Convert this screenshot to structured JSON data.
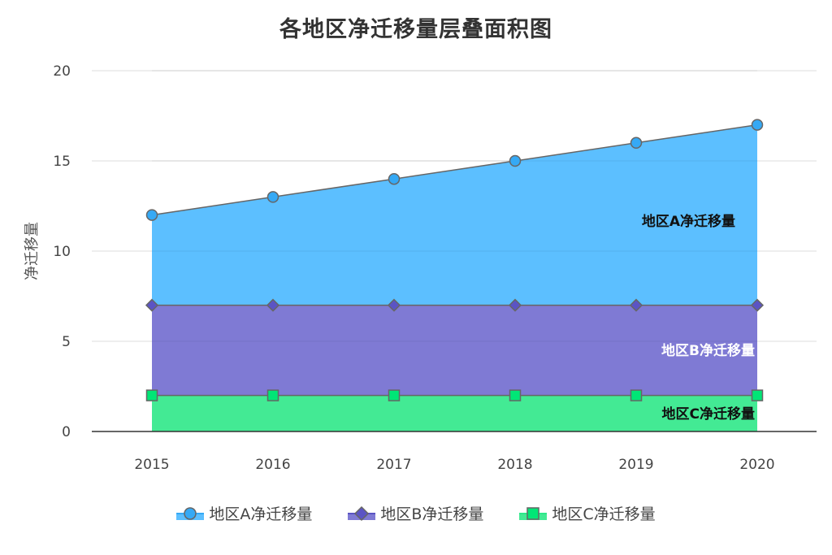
{
  "chart_data": {
    "type": "area",
    "stacked": true,
    "title": "各地区净迁移量层叠面积图",
    "xlabel": "",
    "ylabel": "净迁移量",
    "categories": [
      "2015",
      "2016",
      "2017",
      "2018",
      "2019",
      "2020"
    ],
    "ylim": [
      0,
      20
    ],
    "yticks": [
      "0",
      "5",
      "10",
      "15",
      "20"
    ],
    "grid": true,
    "legend_position": "bottom",
    "series": [
      {
        "name": "地区C净迁移量",
        "values": [
          2,
          2,
          2,
          2,
          2,
          2
        ],
        "color": "#2ee88a",
        "marker": "square"
      },
      {
        "name": "地区B净迁移量",
        "values": [
          5,
          5,
          5,
          5,
          5,
          5
        ],
        "color": "#5b54c4",
        "marker": "diamond"
      },
      {
        "name": "地区A净迁移量",
        "values": [
          5,
          6,
          7,
          8,
          9,
          10
        ],
        "color": "#35a9f5",
        "marker": "circle"
      }
    ],
    "stacked_totals": {
      "地区C净迁移量": [
        2,
        2,
        2,
        2,
        2,
        2
      ],
      "地区B净迁移量": [
        7,
        7,
        7,
        7,
        7,
        7
      ],
      "地区A净迁移量": [
        12,
        13,
        14,
        15,
        16,
        17
      ]
    },
    "annotations": [
      "地区A净迁移量",
      "地区B净迁移量",
      "地区C净迁移量"
    ]
  },
  "legend": [
    {
      "label": "地区A净迁移量"
    },
    {
      "label": "地区B净迁移量"
    },
    {
      "label": "地区C净迁移量"
    }
  ]
}
